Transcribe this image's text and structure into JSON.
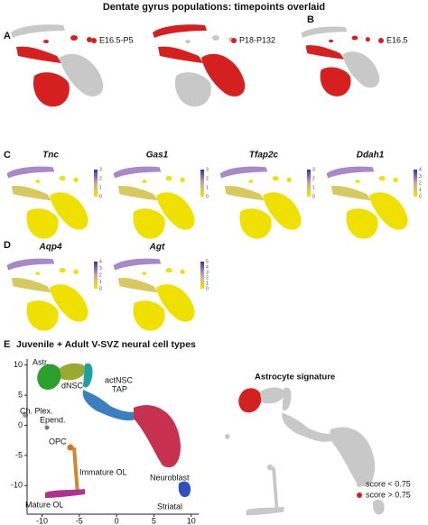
{
  "title": "Dentate gyrus populations: timepoints overlaid",
  "panel_a": {
    "letter": "A",
    "legend": [
      "E16.5-P5",
      "P18-P132"
    ]
  },
  "panel_b": {
    "letter": "B",
    "legend": [
      "E16.5"
    ]
  },
  "panel_c": {
    "letter": "C",
    "genes": [
      {
        "name": "Tnc",
        "scale": [
          3,
          2,
          1,
          0
        ]
      },
      {
        "name": "Gas1",
        "scale": [
          3,
          2,
          1,
          0
        ]
      },
      {
        "name": "Tfap2c",
        "scale": [
          3,
          2,
          1,
          0
        ]
      },
      {
        "name": "Ddah1",
        "scale": [
          4,
          3,
          2,
          1,
          0
        ]
      }
    ]
  },
  "panel_d": {
    "letter": "D",
    "genes": [
      {
        "name": "Aqp4",
        "scale": [
          4,
          3,
          2,
          1,
          0
        ]
      },
      {
        "name": "Agt",
        "scale": [
          5,
          4,
          3,
          2,
          1,
          0
        ]
      }
    ]
  },
  "panel_e": {
    "letter": "E",
    "title": "Juvenile + Adult V-SVZ neural cell types",
    "clusters": [
      "Astr.",
      "dNSC",
      "actNSC",
      "TAP",
      "Ch. Plex.",
      "Epend.",
      "OPC",
      "Immature OL",
      "Neuroblast",
      "Mature OL",
      "Striatal"
    ],
    "xticks": [
      -10,
      -5,
      0,
      5,
      10
    ],
    "yticks": [
      10,
      5,
      0,
      -5,
      -10
    ],
    "signature_title": "Astrocyte signature",
    "signature_legend": [
      "score < 0.75",
      "score > 0.75"
    ]
  }
}
